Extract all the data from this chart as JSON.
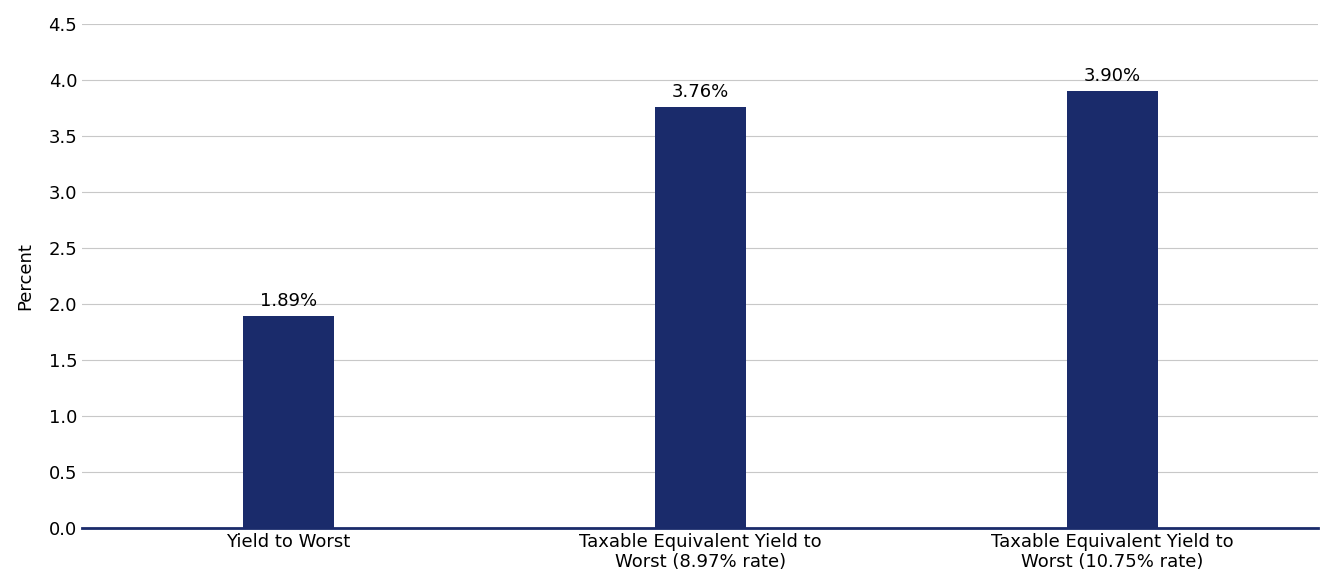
{
  "categories": [
    "Yield to Worst",
    "Taxable Equivalent Yield to\nWorst (8.97% rate)",
    "Taxable Equivalent Yield to\nWorst (10.75% rate)"
  ],
  "values": [
    1.89,
    3.76,
    3.9
  ],
  "labels": [
    "1.89%",
    "3.76%",
    "3.90%"
  ],
  "bar_color": "#1a2b6b",
  "ylabel": "Percent",
  "ylim": [
    0,
    4.5
  ],
  "yticks": [
    0.0,
    0.5,
    1.0,
    1.5,
    2.0,
    2.5,
    3.0,
    3.5,
    4.0,
    4.5
  ],
  "bar_width": 0.22,
  "x_positions": [
    0.5,
    1.5,
    2.5
  ],
  "xlim": [
    0.0,
    3.0
  ],
  "background_color": "#ffffff",
  "grid_color": "#c8c8c8",
  "axis_color": "#1a2b6b",
  "label_fontsize": 13,
  "ylabel_fontsize": 13,
  "tick_fontsize": 13,
  "annotation_fontsize": 13
}
